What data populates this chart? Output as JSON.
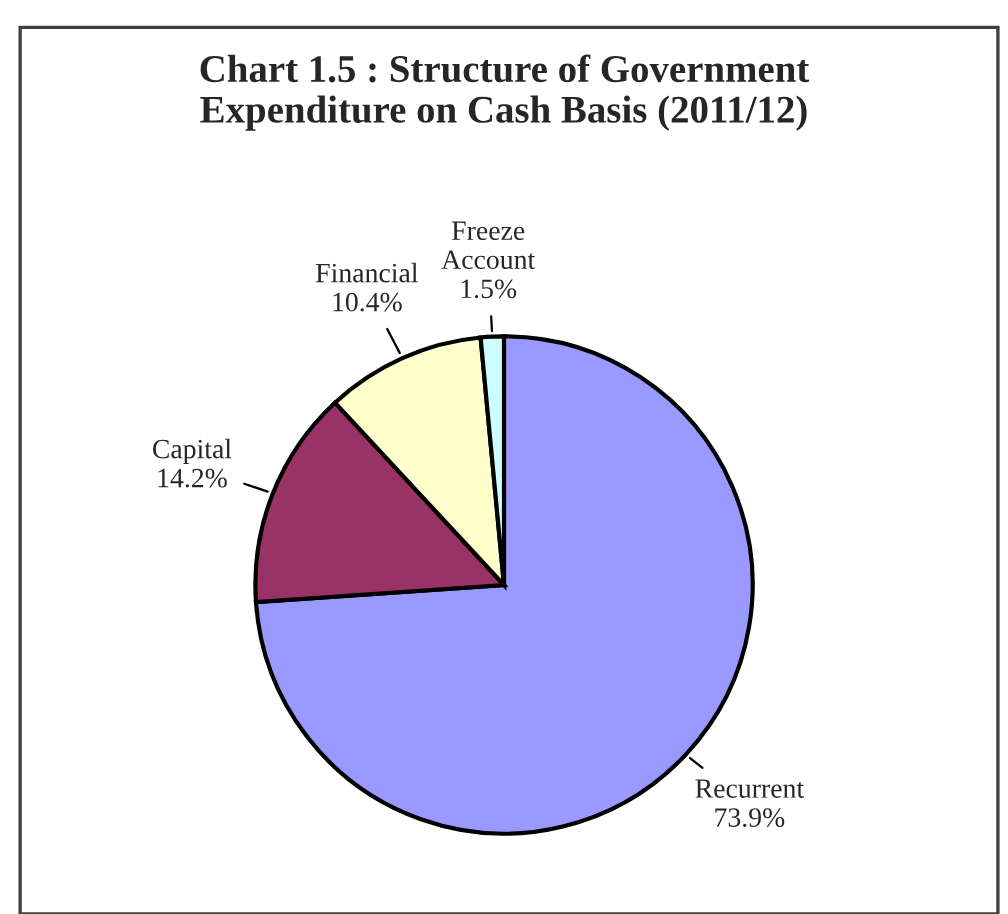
{
  "chart_data": {
    "type": "pie",
    "title": "Chart 1.5 : Structure of Government\nExpenditure on Cash Basis (2011/12)",
    "categories": [
      "Recurrent",
      "Capital",
      "Financial",
      "Freeze\nAccount"
    ],
    "values": [
      73.9,
      14.2,
      10.4,
      1.5
    ],
    "value_labels": [
      "73.9%",
      "14.2%",
      "10.4%",
      "1.5%"
    ],
    "colors": [
      "#9999ff",
      "#993366",
      "#ffffcc",
      "#ccffff"
    ]
  }
}
